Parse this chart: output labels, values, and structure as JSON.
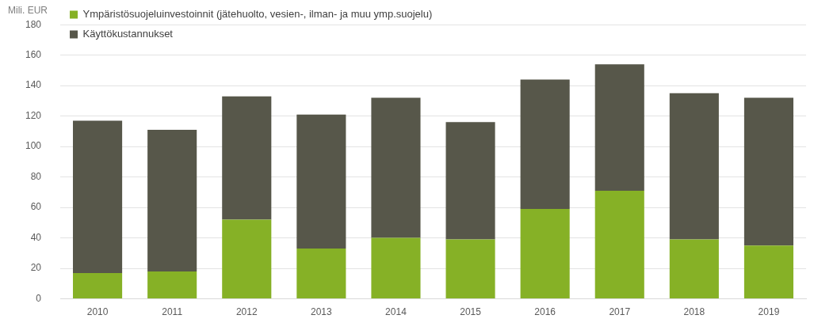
{
  "chart_data": {
    "type": "bar",
    "stacked": true,
    "ylabel": "Mili. EUR",
    "categories": [
      "2010",
      "2011",
      "2012",
      "2013",
      "2014",
      "2015",
      "2016",
      "2017",
      "2018",
      "2019"
    ],
    "series": [
      {
        "name": "Ympäristösuojeluinvestoinnit (jätehuolto, vesien-, ilman- ja muu ymp.suojelu)",
        "color": "#86b126",
        "values": [
          17,
          18,
          52,
          33,
          40,
          39,
          59,
          71,
          39,
          35
        ]
      },
      {
        "name": "Käyttökustannukset",
        "color": "#57574a",
        "values": [
          100,
          93,
          81,
          88,
          92,
          77,
          85,
          83,
          96,
          97
        ]
      }
    ],
    "ylim": [
      0,
      180
    ],
    "yticks": [
      0,
      20,
      40,
      60,
      80,
      100,
      120,
      140,
      160,
      180
    ],
    "grid": "y",
    "legend": "top left"
  }
}
